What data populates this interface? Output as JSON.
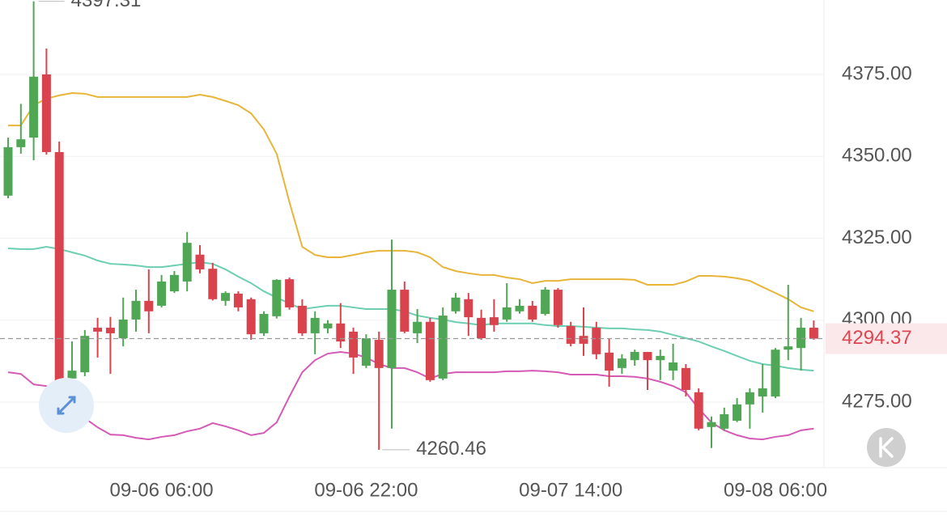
{
  "chart_data": {
    "type": "candlestick",
    "categories": [
      null,
      null,
      null,
      null,
      null,
      null,
      null,
      null,
      null,
      null,
      null,
      null,
      "09-06 06:00",
      null,
      null,
      null,
      null,
      null,
      null,
      null,
      null,
      null,
      null,
      null,
      null,
      null,
      null,
      null,
      "09-06 22:00",
      null,
      null,
      null,
      null,
      null,
      null,
      null,
      null,
      null,
      null,
      null,
      null,
      null,
      null,
      null,
      "09-07 14:00",
      null,
      null,
      null,
      null,
      null,
      null,
      null,
      null,
      null,
      null,
      null,
      null,
      null,
      null,
      null,
      "09-08 06:00",
      null,
      null,
      null
    ],
    "open": [
      4338.0,
      4352.8,
      4355.7,
      4375.0,
      4351.3,
      4282.2,
      4284.1,
      4297.7,
      4297.7,
      4294.5,
      4300.2,
      4305.9,
      4304.4,
      4308.8,
      4311.8,
      4320.0,
      4315.7,
      4305.9,
      4308.1,
      4306.4,
      4296.0,
      4301.2,
      4312.5,
      4304.4,
      4296.0,
      4297.5,
      4299.0,
      4296.5,
      4286.1,
      4294.0,
      4285.4,
      4309.3,
      4296.0,
      4299.5,
      4282.2,
      4302.7,
      4306.4,
      4300.7,
      4300.9,
      4300.2,
      4302.7,
      4304.4,
      4301.9,
      4309.3,
      4298.2,
      4295.2,
      4297.7,
      4290.1,
      4285.4,
      4287.8,
      4290.3,
      4287.8,
      4284.6,
      4285.4,
      4278.0,
      4267.4,
      4266.9,
      4269.3,
      4274.3,
      4276.7,
      4276.7,
      4291.0,
      4291.5,
      4297.7
    ],
    "high": [
      4355.7,
      4366.0,
      4397.31,
      4382.9,
      4354.5,
      4293.5,
      4297.0,
      4300.7,
      4301.0,
      4306.9,
      4309.3,
      4315.5,
      4313.8,
      4315.0,
      4326.9,
      4322.9,
      4317.5,
      4308.8,
      4308.8,
      4306.9,
      4302.7,
      4312.5,
      4313.0,
      4306.4,
      4302.7,
      4300.0,
      4305.2,
      4297.7,
      4295.7,
      4296.5,
      4324.6,
      4311.8,
      4303.4,
      4300.7,
      4303.9,
      4308.3,
      4308.3,
      4303.2,
      4306.4,
      4311.3,
      4306.4,
      4305.9,
      4310.1,
      4309.8,
      4299.5,
      4303.9,
      4299.5,
      4294.5,
      4289.6,
      4291.0,
      4290.3,
      4291.0,
      4292.8,
      4286.6,
      4279.2,
      4270.6,
      4273.3,
      4276.2,
      4279.2,
      4286.6,
      4291.5,
      4310.8,
      4300.7,
      4299.9
    ],
    "low": [
      4337.2,
      4350.8,
      4348.8,
      4350.5,
      4274.3,
      4281.0,
      4282.9,
      4288.6,
      4283.6,
      4292.0,
      4296.5,
      4296.0,
      4303.9,
      4308.3,
      4308.8,
      4314.3,
      4306.0,
      4304.4,
      4302.7,
      4294.0,
      4295.2,
      4300.5,
      4303.2,
      4295.2,
      4289.6,
      4296.0,
      4291.5,
      4283.6,
      4285.4,
      4260.46,
      4266.9,
      4296.0,
      4293.0,
      4281.2,
      4281.7,
      4302.0,
      4295.2,
      4294.0,
      4296.5,
      4299.5,
      4302.0,
      4299.5,
      4301.4,
      4297.7,
      4292.0,
      4289.1,
      4288.1,
      4279.7,
      4283.6,
      4286.1,
      4278.7,
      4281.7,
      4281.7,
      4276.7,
      4266.4,
      4261.0,
      4266.4,
      4268.9,
      4266.9,
      4271.8,
      4276.2,
      4287.8,
      4284.6,
      4294.0
    ],
    "close": [
      4352.8,
      4355.2,
      4374.3,
      4351.3,
      4281.2,
      4284.6,
      4295.2,
      4296.5,
      4296.0,
      4300.2,
      4305.9,
      4302.7,
      4311.8,
      4313.8,
      4323.6,
      4315.5,
      4306.4,
      4308.3,
      4303.9,
      4295.7,
      4301.9,
      4312.3,
      4303.9,
      4296.0,
      4300.7,
      4299.0,
      4293.5,
      4288.6,
      4294.5,
      4285.4,
      4309.3,
      4296.5,
      4299.5,
      4281.7,
      4301.4,
      4306.9,
      4300.9,
      4294.5,
      4298.5,
      4303.9,
      4304.4,
      4300.2,
      4309.3,
      4298.5,
      4292.8,
      4292.8,
      4289.6,
      4284.6,
      4288.3,
      4290.3,
      4287.8,
      4289.1,
      4287.1,
      4278.7,
      4266.9,
      4268.9,
      4271.3,
      4274.3,
      4278.0,
      4279.2,
      4291.0,
      4292.0,
      4297.7,
      4294.37
    ],
    "up_color": "#4fa655",
    "down_color": "#d9434e",
    "bands": [
      {
        "color": "#e6b53a",
        "values": [
          4359.4,
          4359.4,
          4365.6,
          4367.6,
          4368.6,
          4369.3,
          4369.1,
          4368.1,
          4368.1,
          4368.1,
          4368.1,
          4368.1,
          4368.1,
          4368.1,
          4368.1,
          4368.8,
          4368.1,
          4366.9,
          4365.6,
          4363.1,
          4358.2,
          4350.8,
          4336.0,
          4322.4,
          4319.9,
          4319.2,
          4319.2,
          4319.9,
          4320.7,
          4321.2,
          4321.2,
          4321.2,
          4320.7,
          4319.2,
          4316.2,
          4315.0,
          4314.3,
          4313.8,
          4313.8,
          4313.0,
          4312.5,
          4311.3,
          4312.0,
          4312.0,
          4312.5,
          4312.5,
          4312.5,
          4312.5,
          4312.5,
          4312.3,
          4310.8,
          4310.8,
          4310.8,
          4311.8,
          4313.5,
          4313.5,
          4313.3,
          4312.8,
          4312.0,
          4310.1,
          4308.3,
          4306.4,
          4303.9,
          4302.7
        ]
      },
      {
        "color": "#6ccfb2",
        "values": [
          4321.9,
          4321.7,
          4321.7,
          4322.4,
          4321.7,
          4320.7,
          4319.7,
          4318.2,
          4317.2,
          4317.0,
          4316.7,
          4316.2,
          4316.2,
          4316.7,
          4317.2,
          4317.7,
          4317.2,
          4315.5,
          4313.3,
          4311.3,
          4308.8,
          4306.9,
          4305.1,
          4303.4,
          4303.9,
          4304.4,
          4304.4,
          4303.9,
          4303.4,
          4303.4,
          4303.4,
          4302.7,
          4301.4,
          4300.7,
          4300.2,
          4299.4,
          4299.0,
          4298.5,
          4299.0,
          4299.0,
          4299.0,
          4299.0,
          4298.5,
          4298.2,
          4298.2,
          4298.0,
          4297.7,
          4297.5,
          4297.5,
          4297.2,
          4297.0,
          4296.5,
          4295.5,
          4294.5,
          4293.5,
          4292.0,
          4290.6,
          4289.1,
          4287.6,
          4286.6,
          4286.1,
          4285.4,
          4284.9,
          4284.6
        ]
      },
      {
        "color": "#d45ab6",
        "values": [
          4284.1,
          4283.6,
          4280.4,
          4279.9,
          4276.7,
          4273.0,
          4270.1,
          4267.3,
          4265.1,
          4264.9,
          4264.1,
          4263.6,
          4264.4,
          4264.9,
          4266.1,
          4266.9,
          4268.6,
          4267.6,
          4266.4,
          4264.9,
          4265.6,
          4268.8,
          4276.7,
          4284.1,
          4287.8,
          4289.8,
          4290.3,
          4289.8,
          4288.6,
          4286.6,
          4285.4,
          4285.4,
          4284.1,
          4282.2,
          4283.6,
          4284.1,
          4284.1,
          4284.1,
          4284.1,
          4284.4,
          4284.4,
          4284.6,
          4284.4,
          4284.1,
          4283.4,
          4283.4,
          4283.4,
          4282.9,
          4282.9,
          4282.7,
          4282.2,
          4281.2,
          4279.9,
          4278.0,
          4273.0,
          4268.8,
          4266.4,
          4264.9,
          4263.9,
          4263.6,
          4264.4,
          4264.9,
          4266.4,
          4266.9
        ]
      }
    ],
    "ylim": [
      4255.0,
      4397.7
    ],
    "yticks": [
      {
        "value": 4275,
        "label": "4275.00"
      },
      {
        "value": 4300,
        "label": "4300.00"
      },
      {
        "value": 4325,
        "label": "4325.00"
      },
      {
        "value": 4350,
        "label": "4350.00"
      },
      {
        "value": 4375,
        "label": "4375.00"
      }
    ],
    "grid": true
  }
}
